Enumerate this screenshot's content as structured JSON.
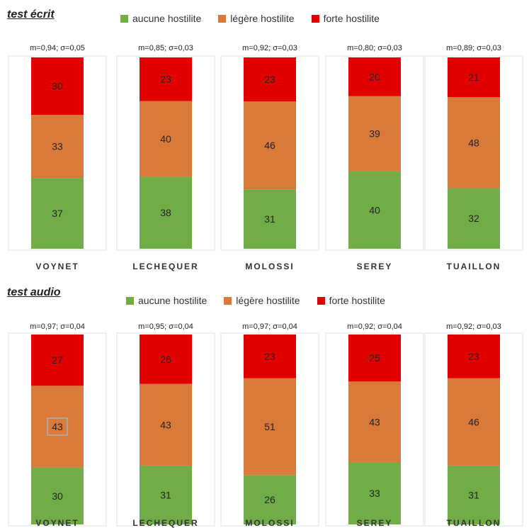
{
  "colors": {
    "aucune": "#70ad47",
    "legere": "#d97a3a",
    "forte": "#e00000",
    "panel_border": "#e0e0e0"
  },
  "legend": [
    "aucune hostilite",
    "légère hostilite",
    "forte hostilite"
  ],
  "chart_data": [
    {
      "type": "bar",
      "stacked": true,
      "title": "test écrit",
      "categories": [
        "VOYNET",
        "LECHEQUER",
        "MOLOSSI",
        "SEREY",
        "TUAILLON"
      ],
      "stats": [
        "m=0,94; σ=0,05",
        "m=0,85; σ=0,03",
        "m=0,92; σ=0,03",
        "m=0,80; σ=0,03",
        "m=0,89; σ=0,03"
      ],
      "series": [
        {
          "name": "aucune hostilite",
          "values": [
            37,
            38,
            31,
            40,
            32
          ]
        },
        {
          "name": "légère hostilite",
          "values": [
            33,
            40,
            46,
            39,
            48
          ]
        },
        {
          "name": "forte hostilite",
          "values": [
            30,
            23,
            23,
            20,
            21
          ]
        }
      ]
    },
    {
      "type": "bar",
      "stacked": true,
      "title": "test audio",
      "categories": [
        "VOYNET",
        "LECHEQUER",
        "MOLOSSI",
        "SEREY",
        "TUAILLON"
      ],
      "stats": [
        "m=0,97; σ=0,04",
        "m=0,95; σ=0,04",
        "m=0,97; σ=0,04",
        "m=0,92; σ=0,04",
        "m=0,92; σ=0,03"
      ],
      "series": [
        {
          "name": "aucune hostilite",
          "values": [
            30,
            31,
            26,
            33,
            31
          ]
        },
        {
          "name": "légère hostilite",
          "values": [
            43,
            43,
            51,
            43,
            46
          ]
        },
        {
          "name": "forte hostilite",
          "values": [
            27,
            26,
            23,
            25,
            23
          ]
        }
      ]
    }
  ]
}
